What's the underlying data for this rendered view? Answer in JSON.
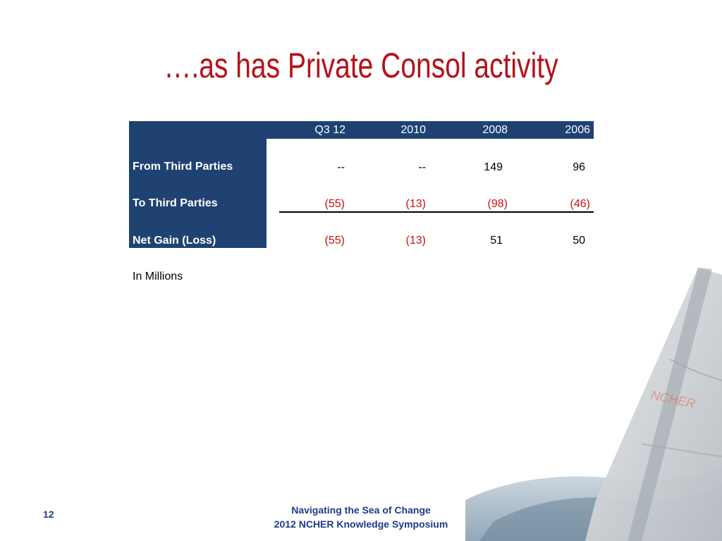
{
  "slide": {
    "title": "….as has Private Consol activity",
    "page_number": "12",
    "footer_line1": "Navigating the Sea of Change",
    "footer_line2": "2012 NCHER Knowledge Symposium",
    "watermark_logo_text": "NCHER"
  },
  "table": {
    "columns": [
      "Q3 12",
      "2010",
      "2008",
      "2006"
    ],
    "rows": [
      {
        "label": "From Third Parties",
        "values": [
          "--",
          "--",
          "149",
          "96"
        ]
      },
      {
        "label": "To Third Parties",
        "values": [
          "(55)",
          "(13)",
          "(98)",
          "(46)"
        ]
      },
      {
        "label": "Net Gain (Loss)",
        "values": [
          "(55)",
          "(13)",
          "51",
          "50"
        ]
      }
    ],
    "note": "In Millions"
  },
  "colors": {
    "title": "#b5121b",
    "header_bg": "#1f4272",
    "negative": "#cc1111",
    "footer": "#1f3a8a"
  }
}
